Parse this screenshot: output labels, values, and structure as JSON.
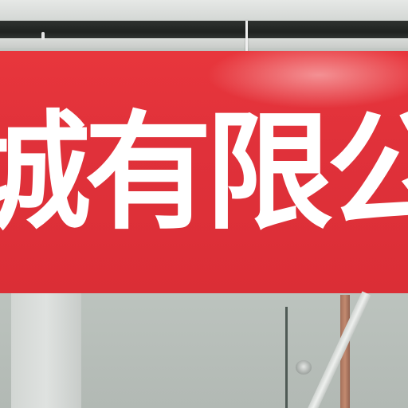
{
  "banner": {
    "chars": [
      "城",
      "有",
      "限",
      "公"
    ],
    "background_color": "#e0313a",
    "text_color": "#ffffff"
  }
}
